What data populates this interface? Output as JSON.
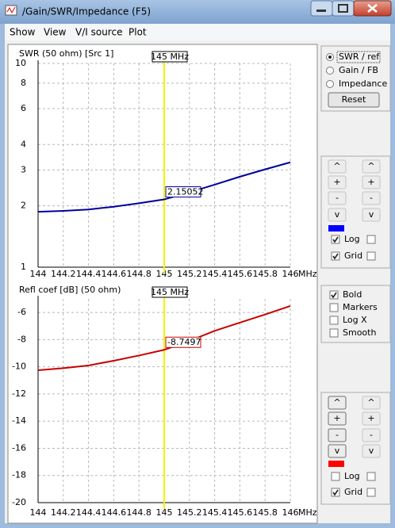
{
  "window": {
    "title": "/Gain/SWR/Impedance (F5)"
  },
  "menu": [
    "Show",
    "View",
    "V/I source",
    "Plot"
  ],
  "chart_data": [
    {
      "type": "line",
      "y_label": "SWR (50 ohm) [Src 1]",
      "x_unit": "MHz",
      "x": [
        144,
        144.2,
        144.4,
        144.6,
        144.8,
        145,
        145.2,
        145.4,
        145.6,
        145.8,
        146
      ],
      "xlim": [
        144,
        146
      ],
      "xticks": [
        144,
        144.2,
        144.4,
        144.6,
        144.8,
        145,
        145.2,
        145.4,
        145.6,
        145.8,
        146
      ],
      "ylim": [
        1,
        10
      ],
      "yticks": [
        1,
        2,
        3,
        4,
        6,
        8,
        10
      ],
      "log_y": true,
      "grid": true,
      "label_color": "#0000c0",
      "series": [
        {
          "color": "#00009c",
          "values": [
            1.87,
            1.89,
            1.92,
            1.98,
            2.06,
            2.15052,
            2.33,
            2.54,
            2.78,
            3.02,
            3.27
          ]
        }
      ],
      "cursor": {
        "value": 145,
        "label": "145 MHz",
        "color": "#f4f400"
      }
    },
    {
      "type": "line",
      "y_label": "Refl coef [dB] (50 ohm)",
      "x_unit": "MHz",
      "x": [
        144,
        144.2,
        144.4,
        144.6,
        144.8,
        145,
        145.2,
        145.4,
        145.6,
        145.8,
        146
      ],
      "xlim": [
        144,
        146
      ],
      "xticks": [
        144,
        144.2,
        144.4,
        144.6,
        144.8,
        145,
        145.2,
        145.4,
        145.6,
        145.8,
        146
      ],
      "ylim": [
        -20,
        -5
      ],
      "yticks": [
        -20,
        -18,
        -16,
        -14,
        -12,
        -10,
        -8,
        -6
      ],
      "log_y": false,
      "grid": true,
      "label_color": "#c00000",
      "series": [
        {
          "color": "#c80000",
          "values": [
            -10.25,
            -10.1,
            -9.9,
            -9.55,
            -9.17,
            -8.7497,
            -8.1,
            -7.35,
            -6.75,
            -6.15,
            -5.52
          ]
        }
      ],
      "cursor": {
        "value": 145,
        "label": "145 MHz",
        "color": "#f4f400"
      }
    }
  ],
  "display_options": {
    "items": [
      "SWR / ref",
      "Gain / FB",
      "Impedance"
    ],
    "selected": 0,
    "reset": "Reset"
  },
  "upper_controls": {
    "buttons": [
      "^",
      "+",
      "-",
      "v"
    ],
    "color": "#0000ff",
    "log": {
      "label": "Log",
      "checked": true
    },
    "grid": {
      "label": "Grid",
      "checked": true
    }
  },
  "style_options": [
    {
      "label": "Bold",
      "checked": true
    },
    {
      "label": "Markers",
      "checked": false
    },
    {
      "label": "Log X",
      "checked": false
    },
    {
      "label": "Smooth",
      "checked": false
    }
  ],
  "lower_controls": {
    "buttons": [
      "^",
      "+",
      "-",
      "v"
    ],
    "color": "#ff0000",
    "log": {
      "label": "Log",
      "checked": false
    },
    "grid": {
      "label": "Grid",
      "checked": true
    }
  }
}
